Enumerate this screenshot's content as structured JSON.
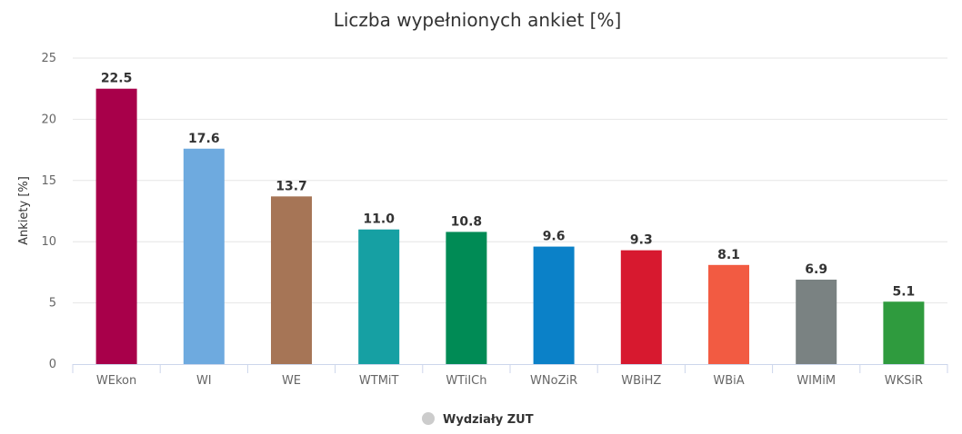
{
  "chart_data": {
    "type": "bar",
    "title": "Liczba wypełnionych ankiet [%]",
    "ylabel": "Ankiety [%]",
    "xlabel": "",
    "ylim": [
      0,
      25
    ],
    "yticks": [
      0,
      5,
      10,
      15,
      20,
      25
    ],
    "grid": true,
    "legend": {
      "position": "bottom-center",
      "label": "Wydziały ZUT",
      "marker_color": "#cccccc"
    },
    "categories": [
      "WEkon",
      "WI",
      "WE",
      "WTMiT",
      "WTiICh",
      "WNoZiR",
      "WBiHZ",
      "WBiA",
      "WIMiM",
      "WKSiR"
    ],
    "series": [
      {
        "name": "Wydziały ZUT",
        "values": [
          22.5,
          17.6,
          13.7,
          11.0,
          10.8,
          9.6,
          9.3,
          8.1,
          6.9,
          5.1
        ],
        "data_labels": [
          "22.5",
          "17.6",
          "13.7",
          "11.0",
          "10.8",
          "9.6",
          "9.3",
          "8.1",
          "6.9",
          "5.1"
        ],
        "colors": [
          "#a8004a",
          "#6eaadf",
          "#a67556",
          "#16a0a3",
          "#008b55",
          "#0b81c8",
          "#d7192f",
          "#f25b42",
          "#7a8282",
          "#2f9b3e"
        ]
      }
    ],
    "colors": {
      "grid": "#e6e6e6",
      "axis": "#ccd6eb",
      "text": "#333333",
      "tick_text": "#666666"
    }
  }
}
